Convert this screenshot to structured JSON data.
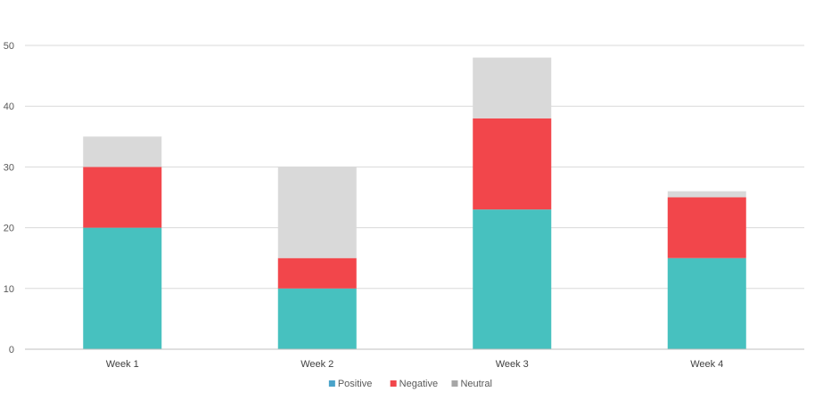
{
  "chart_data": {
    "type": "bar",
    "stacked": true,
    "categories": [
      "Week 1",
      "Week 2",
      "Week 3",
      "Week 4"
    ],
    "series": [
      {
        "name": "Positive",
        "values": [
          20,
          10,
          23,
          15
        ],
        "color": "#47c1bf",
        "legend_color": "#4aa3c9"
      },
      {
        "name": "Negative",
        "values": [
          10,
          5,
          15,
          10
        ],
        "color": "#f2464b",
        "legend_color": "#f2464b"
      },
      {
        "name": "Neutral",
        "values": [
          5,
          15,
          10,
          1
        ],
        "color": "#d9d9d9",
        "legend_color": "#a6a6a6"
      }
    ],
    "yticks": [
      "0",
      "10",
      "20",
      "30",
      "40",
      "50"
    ],
    "ylim": [
      0,
      50
    ],
    "grid": true,
    "legend_position": "bottom"
  }
}
